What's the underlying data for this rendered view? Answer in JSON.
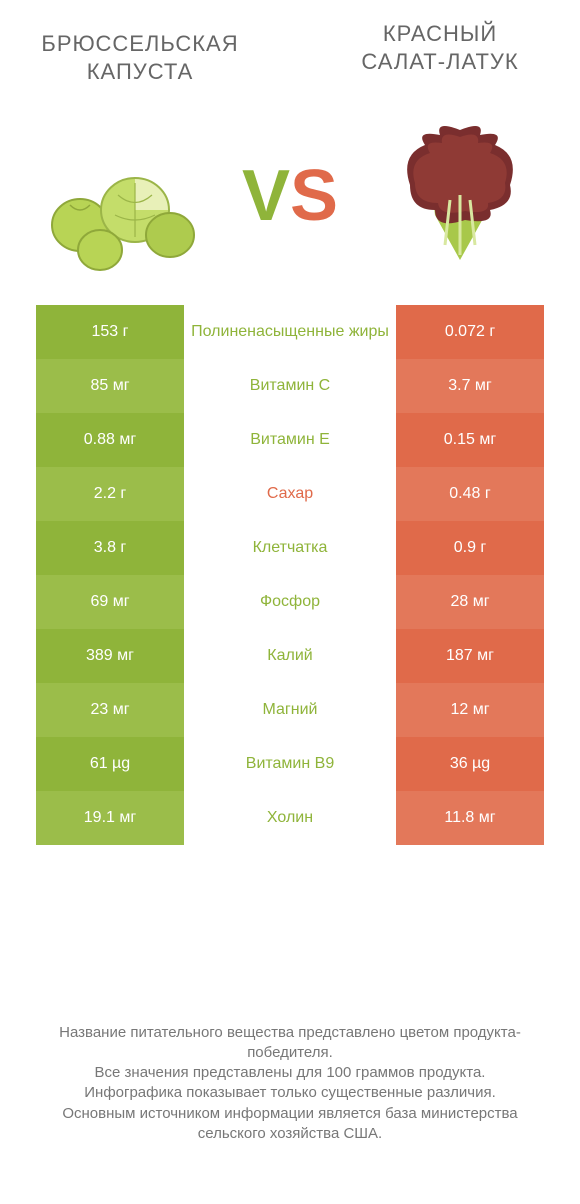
{
  "colors": {
    "green_base": "#8fb43a",
    "green_alt": "#9bbd4a",
    "orange_base": "#e06a4a",
    "orange_alt": "#e3785a",
    "text_gray": "#666666",
    "footer_gray": "#777777",
    "white": "#ffffff"
  },
  "header": {
    "left_title": "БРЮССЕЛЬСКАЯ КАПУСТА",
    "right_title": "КРАСНЫЙ САЛАТ-ЛАТУК",
    "vs_v": "V",
    "vs_s": "S"
  },
  "table": {
    "rows": [
      {
        "left": "153 г",
        "mid": "Полиненасыщенные жиры",
        "right": "0.072 г",
        "winner": "left"
      },
      {
        "left": "85 мг",
        "mid": "Витамин C",
        "right": "3.7 мг",
        "winner": "left"
      },
      {
        "left": "0.88 мг",
        "mid": "Витамин E",
        "right": "0.15 мг",
        "winner": "left"
      },
      {
        "left": "2.2 г",
        "mid": "Сахар",
        "right": "0.48 г",
        "winner": "right"
      },
      {
        "left": "3.8 г",
        "mid": "Клетчатка",
        "right": "0.9 г",
        "winner": "left"
      },
      {
        "left": "69 мг",
        "mid": "Фосфор",
        "right": "28 мг",
        "winner": "left"
      },
      {
        "left": "389 мг",
        "mid": "Калий",
        "right": "187 мг",
        "winner": "left"
      },
      {
        "left": "23 мг",
        "mid": "Магний",
        "right": "12 мг",
        "winner": "left"
      },
      {
        "left": "61 µg",
        "mid": "Витамин B9",
        "right": "36 µg",
        "winner": "left"
      },
      {
        "left": "19.1 мг",
        "mid": "Холин",
        "right": "11.8 мг",
        "winner": "left"
      }
    ]
  },
  "footer": {
    "line1": "Название питательного вещества представлено цветом продукта-победителя.",
    "line2": "Все значения представлены для 100 граммов продукта.",
    "line3": "Инфографика показывает только существенные различия.",
    "line4": "Основным источником информации является база министерства сельского хозяйства США."
  }
}
